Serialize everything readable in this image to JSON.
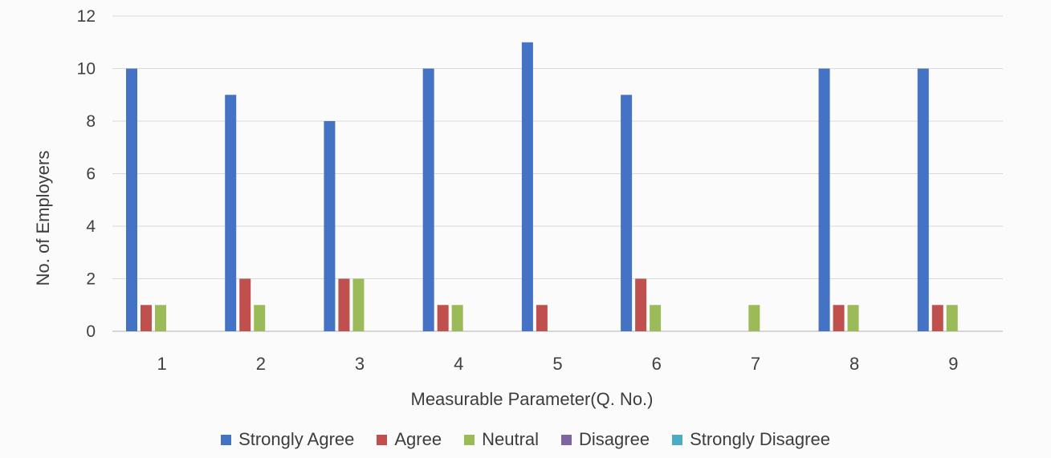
{
  "chart_data": {
    "type": "bar",
    "categories": [
      "1",
      "2",
      "3",
      "4",
      "5",
      "6",
      "7",
      "8",
      "9"
    ],
    "series": [
      {
        "name": "Strongly Agree",
        "color": "#4472C4",
        "values": [
          10,
          9,
          8,
          10,
          11,
          9,
          0,
          10,
          10
        ]
      },
      {
        "name": "Agree",
        "color": "#C0504D",
        "values": [
          1,
          2,
          2,
          1,
          1,
          2,
          0,
          1,
          1
        ]
      },
      {
        "name": "Neutral",
        "color": "#9BBB59",
        "values": [
          1,
          1,
          2,
          1,
          0,
          1,
          1,
          1,
          1
        ]
      },
      {
        "name": "Disagree",
        "color": "#8064A2",
        "values": [
          0,
          0,
          0,
          0,
          0,
          0,
          0,
          0,
          0
        ]
      },
      {
        "name": "Strongly Disagree",
        "color": "#4BACC6",
        "values": [
          0,
          0,
          0,
          0,
          0,
          0,
          0,
          0,
          0
        ]
      }
    ],
    "xlabel": "Measurable Parameter(Q. No.)",
    "ylabel": "No. of Employers",
    "ylim": [
      0,
      12
    ],
    "yticks": [
      0,
      2,
      4,
      6,
      8,
      10,
      12
    ],
    "grid": true,
    "legend": "bottom"
  }
}
